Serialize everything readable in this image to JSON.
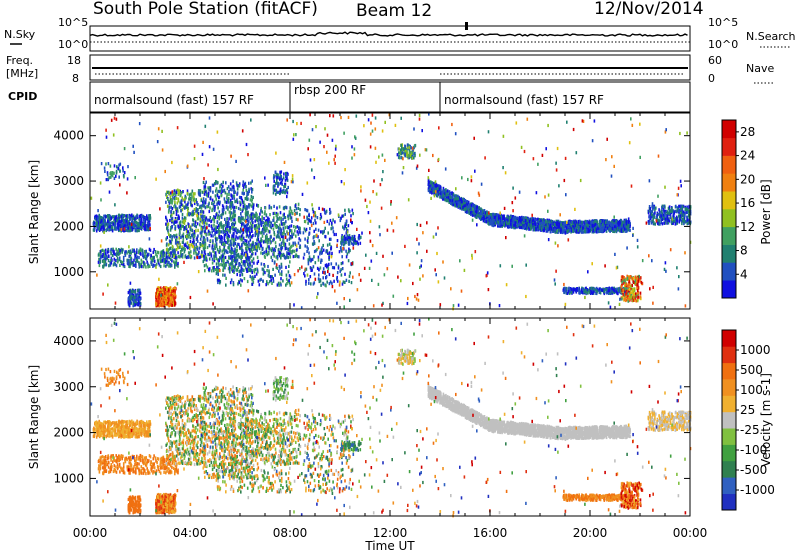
{
  "header": {
    "station": "South Pole Station (fitACF)",
    "beam": "Beam 12",
    "date": "12/Nov/2014"
  },
  "status_panels": {
    "nsky": {
      "label": "N.Sky",
      "ticks": [
        "10^5",
        "10^0"
      ]
    },
    "nsearch": {
      "label": "N.Search",
      "ticks": [
        "10^5",
        "10^0"
      ]
    },
    "freq": {
      "label_line1": "Freq.",
      "label_line2": "[MHz]",
      "ticks": [
        "18",
        "8"
      ]
    },
    "nave": {
      "label": "Nave",
      "ticks": [
        "60",
        "0"
      ]
    },
    "cpid": {
      "label": "CPID",
      "segments": [
        {
          "name": "normalsound (fast) 157 RF",
          "start_h": 0,
          "end_h": 8
        },
        {
          "name": "rbsp 200 RF",
          "start_h": 8,
          "end_h": 14
        },
        {
          "name": "normalsound (fast) 157 RF",
          "start_h": 14,
          "end_h": 24
        }
      ]
    }
  },
  "chart_data": [
    {
      "type": "heatmap",
      "name": "power",
      "ylabel": "Slant Range [km]",
      "xlabel": "Time UT",
      "xlim_hours": [
        0,
        24
      ],
      "ylim": [
        180,
        4500
      ],
      "x_tick_labels": [
        "00:00",
        "04:00",
        "08:00",
        "12:00",
        "16:00",
        "20:00",
        "00:00"
      ],
      "y_ticks": [
        1000,
        2000,
        3000,
        4000
      ],
      "colorbar": {
        "label": "Power [dB]",
        "ticks": [
          4,
          8,
          12,
          16,
          20,
          24,
          28
        ],
        "range": [
          0,
          30
        ],
        "colors": [
          "#1010e0",
          "#2050c0",
          "#208070",
          "#40a060",
          "#90c020",
          "#e0c010",
          "#f08010",
          "#f06010",
          "#e02010",
          "#d00000"
        ]
      },
      "features": [
        {
          "desc": "band",
          "t_start": 0.2,
          "t_end": 2.5,
          "r_center": 2050,
          "level": "low"
        },
        {
          "desc": "patch",
          "t_start": 2.3,
          "t_end": 3.3,
          "r_center": 450,
          "level": "high"
        },
        {
          "desc": "band",
          "t_start": 13.8,
          "t_end": 21.5,
          "r_center": 2050,
          "level": "low"
        },
        {
          "desc": "patch",
          "t_start": 21.0,
          "t_end": 22.0,
          "r_center": 600,
          "level": "high"
        }
      ]
    },
    {
      "type": "heatmap",
      "name": "velocity",
      "ylabel": "Slant Range [km]",
      "xlabel": "Time UT",
      "xlim_hours": [
        0,
        24
      ],
      "ylim": [
        180,
        4500
      ],
      "x_tick_labels": [
        "00:00",
        "04:00",
        "08:00",
        "12:00",
        "16:00",
        "20:00",
        "00:00"
      ],
      "y_ticks": [
        1000,
        2000,
        3000,
        4000
      ],
      "colorbar": {
        "label": "Velocity [m s-1]",
        "ticks": [
          "1000",
          "500",
          "100",
          "25",
          "-25",
          "-100",
          "-500",
          "-1000"
        ],
        "colors": [
          "#2030c0",
          "#3060c0",
          "#308050",
          "#40a040",
          "#80c040",
          "#c0c0c0",
          "#f0b030",
          "#f09020",
          "#f07010",
          "#e03010",
          "#d00000"
        ]
      }
    }
  ]
}
